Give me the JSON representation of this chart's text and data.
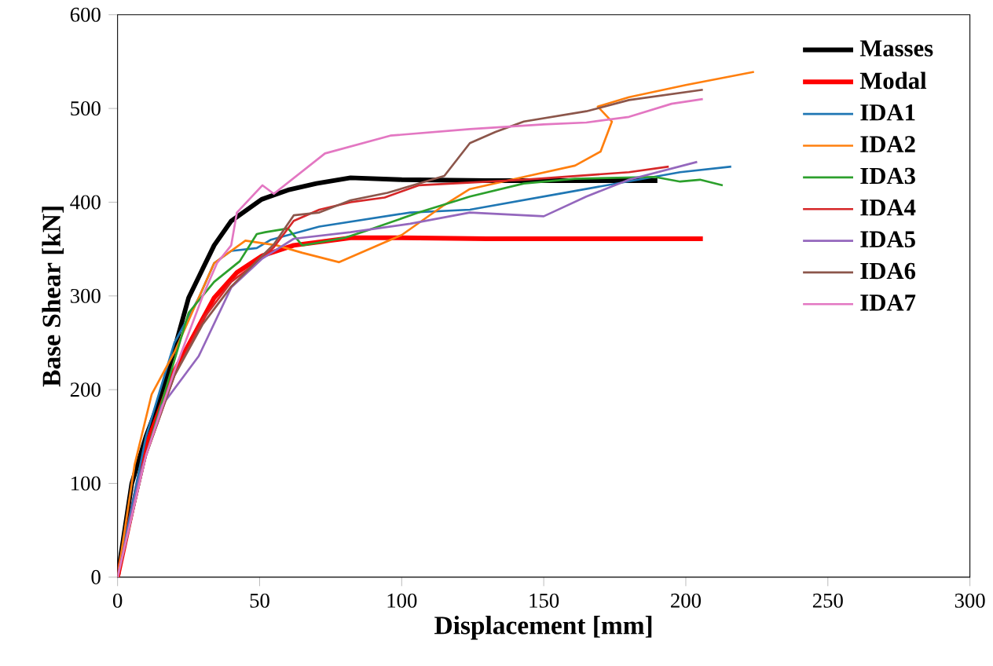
{
  "chart_data": {
    "type": "line",
    "xlabel": "Displacement [mm]",
    "ylabel": "Base Shear [kN]",
    "xlim": [
      0,
      300
    ],
    "ylim": [
      0,
      600
    ],
    "xticks": [
      0,
      50,
      100,
      150,
      200,
      250,
      300
    ],
    "yticks": [
      0,
      100,
      200,
      300,
      400,
      500,
      600
    ],
    "grid": false,
    "legend": "top right",
    "marker": "none",
    "line_style": "solid",
    "series": [
      {
        "name": "Masses",
        "color": "#000000",
        "x": [
          0,
          5,
          10,
          15.6,
          25,
          34,
          40,
          50.7,
          60,
          70,
          82,
          100,
          130,
          160,
          190
        ],
        "values": [
          0,
          100,
          150,
          195,
          298,
          354,
          380,
          403,
          413,
          420,
          426,
          424,
          423,
          423,
          423
        ]
      },
      {
        "name": "Modal",
        "color": "#ff0000",
        "x": [
          0,
          10,
          20,
          34,
          42,
          51,
          62,
          82,
          100,
          130,
          160,
          206
        ],
        "values": [
          0,
          140,
          220,
          298,
          325,
          343,
          354,
          362,
          362,
          361,
          361,
          361
        ]
      },
      {
        "name": "IDA1",
        "color": "#1f77b4",
        "x": [
          0,
          10,
          20,
          28.6,
          34,
          40,
          49,
          54,
          71,
          103,
          124,
          161,
          198,
          216
        ],
        "values": [
          0,
          150,
          250,
          298,
          335,
          348,
          351,
          360,
          374,
          389,
          392,
          412,
          432,
          438
        ]
      },
      {
        "name": "IDA2",
        "color": "#ff7f0e",
        "x": [
          0,
          6,
          12,
          20,
          34,
          45,
          56,
          65,
          78,
          100,
          115,
          124,
          143,
          161,
          170,
          174,
          169,
          180,
          200,
          224
        ],
        "values": [
          0,
          120,
          195,
          240,
          335,
          359,
          354,
          346,
          336,
          365,
          397,
          414,
          427,
          439,
          454,
          486,
          502,
          512,
          525,
          539
        ]
      },
      {
        "name": "IDA3",
        "color": "#2ca02c",
        "x": [
          0,
          10,
          25,
          34,
          43,
          49,
          52,
          60,
          65,
          69,
          80,
          87,
          106,
          124,
          143,
          161,
          189,
          198,
          205,
          213
        ],
        "values": [
          0,
          130,
          282,
          315,
          337,
          366,
          368,
          372,
          354,
          356,
          362,
          369,
          389,
          406,
          420,
          425,
          427,
          422,
          424,
          418
        ]
      },
      {
        "name": "IDA4",
        "color": "#d62728",
        "x": [
          0,
          10,
          20,
          30,
          40,
          50,
          55,
          62,
          71,
          82,
          94,
          106,
          143,
          180,
          194
        ],
        "values": [
          0,
          130,
          215,
          275,
          315,
          338,
          352,
          380,
          392,
          400,
          405,
          418,
          424,
          432,
          438
        ]
      },
      {
        "name": "IDA5",
        "color": "#9467bd",
        "x": [
          0,
          8,
          15.6,
          28.6,
          40,
          51,
          62,
          82,
          103,
          124,
          150,
          165,
          180,
          204
        ],
        "values": [
          0,
          110,
          183,
          236,
          309,
          340,
          361,
          368,
          377,
          389,
          385,
          406,
          424,
          443
        ]
      },
      {
        "name": "IDA6",
        "color": "#8c564b",
        "x": [
          0,
          10,
          20,
          30,
          40,
          50,
          55,
          62,
          71,
          82,
          95,
          115,
          124,
          133,
          143,
          165,
          180,
          206
        ],
        "values": [
          0,
          130,
          215,
          270,
          310,
          340,
          355,
          386,
          389,
          402,
          410,
          428,
          463,
          475,
          486,
          497,
          509,
          520
        ]
      },
      {
        "name": "IDA7",
        "color": "#e377c2",
        "x": [
          0,
          10,
          20,
          30,
          35,
          40,
          42,
          51,
          55,
          73,
          96,
          124,
          150,
          165,
          180,
          195,
          206
        ],
        "values": [
          0,
          130,
          220,
          300,
          335,
          354,
          389,
          418,
          409,
          452,
          471,
          478,
          483,
          485,
          491,
          505,
          510
        ]
      }
    ]
  }
}
